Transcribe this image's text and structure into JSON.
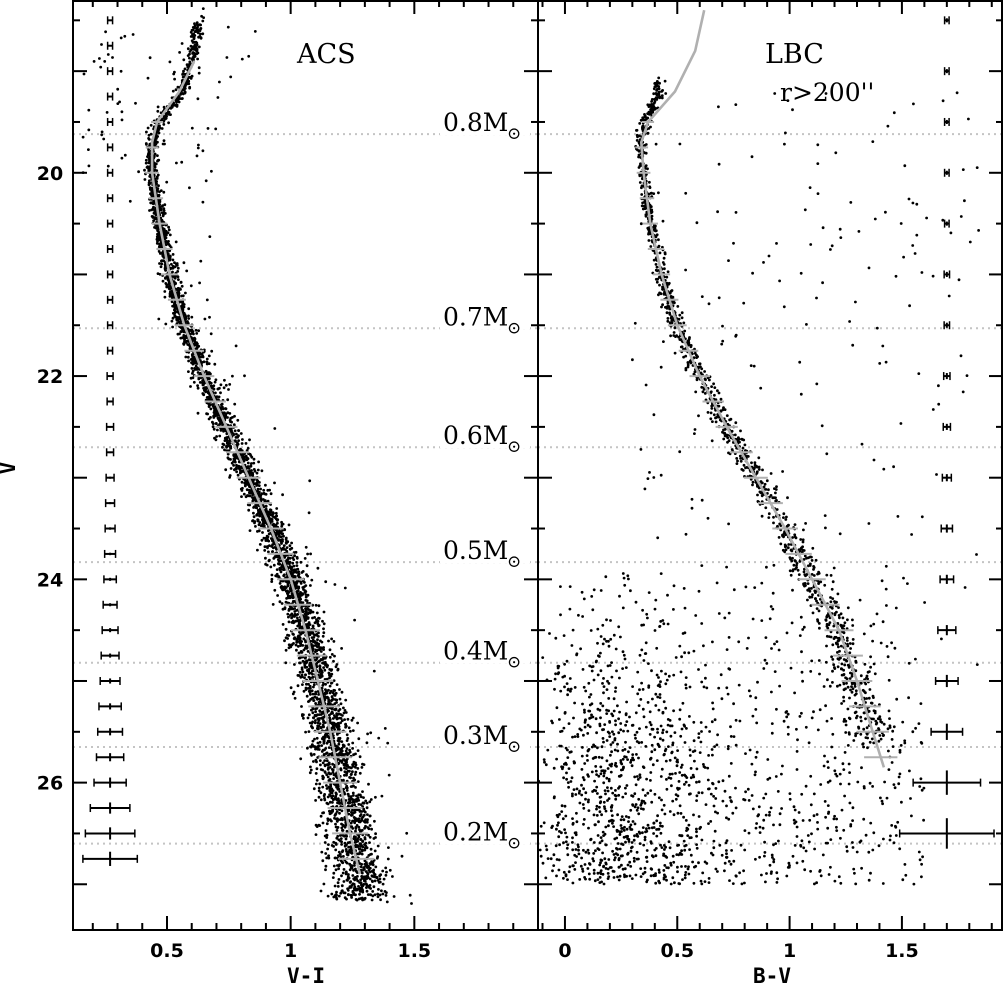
{
  "colors": {
    "frame": "#000000",
    "points": "#000000",
    "isochrone": "#b0b0b0",
    "mass_lines": "#c4c4c4",
    "error_bars": "#000000"
  },
  "y_axis": {
    "label": "V",
    "ticks": [
      "20",
      "22",
      "24",
      "26"
    ],
    "ylim": [
      18.3,
      27.45
    ],
    "inverted": true
  },
  "mass_levels": [
    {
      "label": "0.8M",
      "sub": "⊙",
      "v": 19.62
    },
    {
      "label": "0.7M",
      "sub": "⊙",
      "v": 21.53
    },
    {
      "label": "0.6M",
      "sub": "⊙",
      "v": 22.7
    },
    {
      "label": "0.5M",
      "sub": "⊙",
      "v": 23.83
    },
    {
      "label": "0.4M",
      "sub": "⊙",
      "v": 24.82
    },
    {
      "label": "0.3M",
      "sub": "⊙",
      "v": 25.65
    },
    {
      "label": "0.2M",
      "sub": "⊙",
      "v": 26.6
    }
  ],
  "chart_data": [
    {
      "type": "scatter",
      "title": "ACS",
      "subtitle": "",
      "xlabel": "V-I",
      "ylabel": "V",
      "xlim": [
        0.12,
        2.0
      ],
      "ylim": [
        18.3,
        27.45
      ],
      "x_ticks": [
        "0.5",
        "1",
        "1.5"
      ],
      "x_tick_values": [
        0.5,
        1.0,
        1.5
      ],
      "sequence_fiducial": {
        "v": [
          18.4,
          18.8,
          19.2,
          19.5,
          19.7,
          20.0,
          20.5,
          21.0,
          21.5,
          22.0,
          22.5,
          23.0,
          23.5,
          24.0,
          24.5,
          25.0,
          25.5,
          26.0,
          26.5,
          26.9
        ],
        "ci": [
          0.63,
          0.61,
          0.56,
          0.47,
          0.44,
          0.44,
          0.47,
          0.51,
          0.57,
          0.65,
          0.74,
          0.83,
          0.92,
          1.0,
          1.06,
          1.11,
          1.16,
          1.2,
          1.24,
          1.28
        ]
      },
      "isochrone": {
        "v": [
          18.9,
          19.2,
          19.5,
          19.7,
          20.0,
          20.5,
          21.0,
          21.5,
          22.0,
          22.5,
          23.0,
          23.5,
          24.0,
          24.5,
          25.0,
          25.5,
          26.0,
          26.5,
          26.9
        ],
        "ci": [
          0.61,
          0.55,
          0.46,
          0.44,
          0.44,
          0.47,
          0.51,
          0.57,
          0.65,
          0.74,
          0.83,
          0.92,
          1.0,
          1.06,
          1.11,
          1.16,
          1.2,
          1.24,
          1.28
        ]
      },
      "error_bars": {
        "x": 0.27,
        "v": [
          18.5,
          18.75,
          19.0,
          19.25,
          19.5,
          19.75,
          20.0,
          20.25,
          20.5,
          20.75,
          21.0,
          21.25,
          21.5,
          21.75,
          22.0,
          22.25,
          22.5,
          22.75,
          23.0,
          23.25,
          23.5,
          23.75,
          24.0,
          24.25,
          24.5,
          24.75,
          25.0,
          25.25,
          25.5,
          25.75,
          26.0,
          26.25,
          26.5,
          26.75
        ],
        "color_err": [
          0.01,
          0.01,
          0.01,
          0.01,
          0.01,
          0.01,
          0.01,
          0.01,
          0.01,
          0.01,
          0.01,
          0.01,
          0.01,
          0.01,
          0.012,
          0.012,
          0.014,
          0.014,
          0.016,
          0.018,
          0.02,
          0.022,
          0.025,
          0.028,
          0.032,
          0.036,
          0.04,
          0.045,
          0.05,
          0.055,
          0.065,
          0.08,
          0.1,
          0.11
        ],
        "mag_err": [
          0.005,
          0.005,
          0.005,
          0.005,
          0.005,
          0.005,
          0.005,
          0.005,
          0.005,
          0.005,
          0.005,
          0.005,
          0.005,
          0.005,
          0.006,
          0.006,
          0.008,
          0.008,
          0.01,
          0.01,
          0.012,
          0.012,
          0.015,
          0.015,
          0.02,
          0.02,
          0.025,
          0.03,
          0.035,
          0.04,
          0.05,
          0.055,
          0.06,
          0.07
        ]
      }
    },
    {
      "type": "scatter",
      "title": "LBC",
      "subtitle": "r>200''",
      "xlabel": "B-V",
      "ylabel": "V",
      "xlim": [
        -0.12,
        1.95
      ],
      "ylim": [
        18.3,
        27.45
      ],
      "x_ticks": [
        "0",
        "0.5",
        "1",
        "1.5"
      ],
      "x_tick_values": [
        0.0,
        0.5,
        1.0,
        1.5
      ],
      "sequence_fiducial": {
        "v": [
          19.2,
          19.5,
          19.7,
          20.0,
          20.5,
          21.0,
          21.5,
          22.0,
          22.5,
          23.0,
          23.5,
          24.0,
          24.5,
          25.0,
          25.5
        ],
        "ci": [
          0.42,
          0.36,
          0.34,
          0.35,
          0.38,
          0.43,
          0.5,
          0.6,
          0.72,
          0.85,
          0.98,
          1.1,
          1.22,
          1.3,
          1.36
        ]
      },
      "isochrone": {
        "v": [
          18.4,
          18.8,
          19.2,
          19.5,
          19.7,
          20.0,
          20.5,
          21.0,
          21.5,
          22.0,
          22.5,
          23.0,
          23.5,
          24.0,
          24.5,
          25.0,
          25.5,
          25.85
        ],
        "ci": [
          0.62,
          0.58,
          0.49,
          0.37,
          0.34,
          0.35,
          0.38,
          0.43,
          0.5,
          0.6,
          0.72,
          0.85,
          0.98,
          1.1,
          1.22,
          1.3,
          1.37,
          1.42
        ]
      },
      "error_bars": {
        "x": 1.7,
        "v": [
          18.5,
          19.0,
          19.5,
          20.0,
          20.5,
          21.0,
          21.5,
          22.0,
          22.5,
          23.0,
          23.5,
          24.0,
          24.5,
          25.0,
          25.5,
          26.0,
          26.5
        ],
        "color_err": [
          0.01,
          0.01,
          0.01,
          0.01,
          0.01,
          0.012,
          0.012,
          0.014,
          0.016,
          0.02,
          0.025,
          0.03,
          0.04,
          0.05,
          0.07,
          0.15,
          0.21
        ],
        "mag_err": [
          0.02,
          0.02,
          0.02,
          0.02,
          0.02,
          0.025,
          0.025,
          0.03,
          0.03,
          0.035,
          0.04,
          0.045,
          0.05,
          0.06,
          0.08,
          0.12,
          0.15
        ]
      },
      "field_population": {
        "ci_range": [
          -0.05,
          1.6
        ],
        "v_range": [
          23.8,
          27.0
        ],
        "peak_ci": 0.25
      }
    }
  ]
}
